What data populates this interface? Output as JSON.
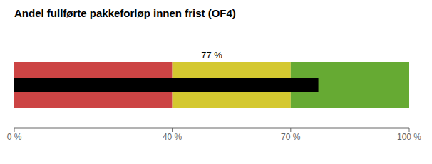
{
  "chart_data": {
    "type": "bullet",
    "title": "Andel fullførte pakkeforløp innen frist (OF4)",
    "orientation": "horizontal",
    "stacked": true,
    "categories": [
      null
    ],
    "series": [
      {
        "color": "#cc4444",
        "values": [
          40
        ]
      },
      {
        "color": "#d4c830",
        "values": [
          30
        ]
      },
      {
        "color": "#66aa33",
        "values": [
          30
        ]
      }
    ],
    "values": [
      77
    ],
    "color": "#000000",
    "annotations": [
      {
        "x": 50,
        "text": "77 %"
      }
    ],
    "xlim": [
      0,
      100
    ],
    "xticks": [
      {
        "value": 0,
        "label": "0 %"
      },
      {
        "value": 40,
        "label": "40 %"
      },
      {
        "value": 70,
        "label": "70 %"
      },
      {
        "value": 100,
        "label": "100 %"
      }
    ],
    "grid": false,
    "tick_labels": "x"
  }
}
